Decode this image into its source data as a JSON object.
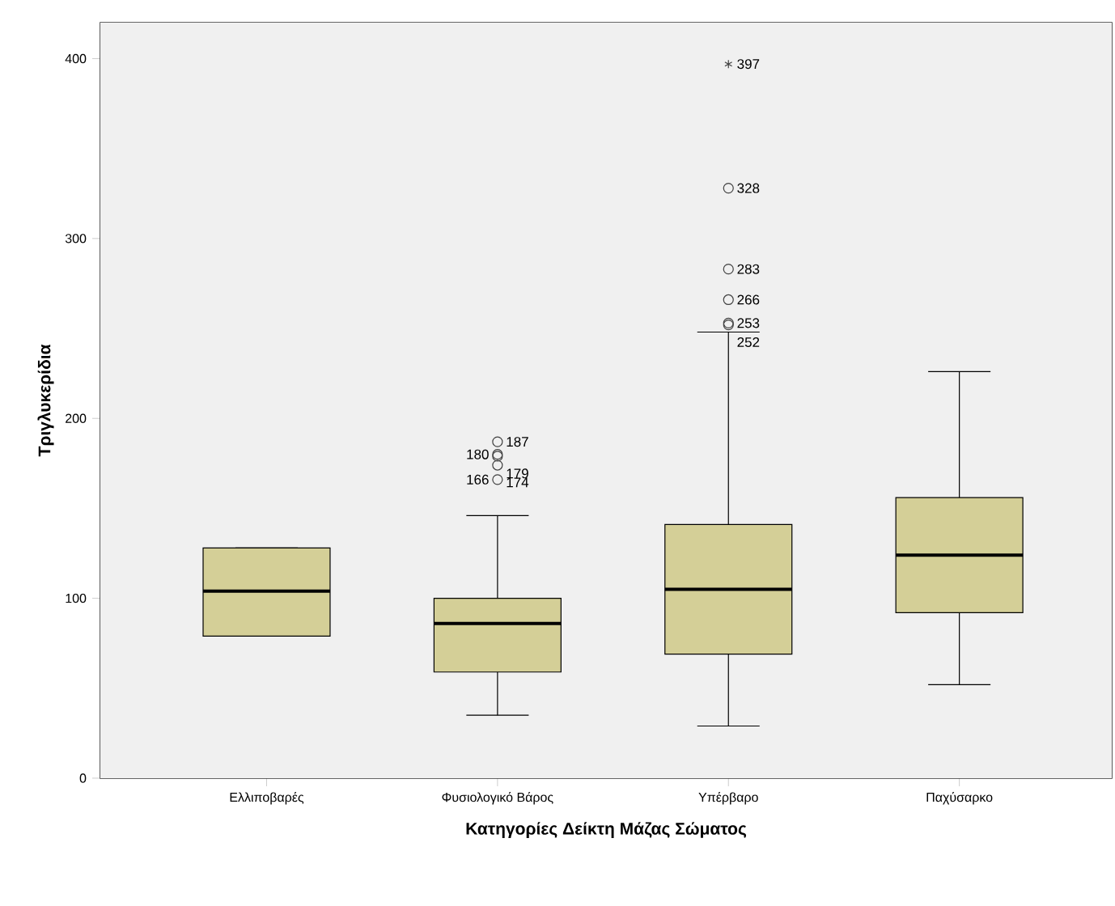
{
  "chart_data": {
    "type": "box",
    "xlabel": "Κατηγορίες Δείκτη Μάζας Σώματος",
    "ylabel": "Τριγλυκερίδια",
    "categories": [
      "Ελλιποβαρές",
      "Φυσιολογικό Βάρος",
      "Υπέρβαρο",
      "Παχύσαρκο"
    ],
    "color": "#d4cf97",
    "boxes": [
      {
        "low": 79,
        "q1": 79,
        "median": 104,
        "q3": 128,
        "high": 128
      },
      {
        "low": 35,
        "q1": 59,
        "median": 86,
        "q3": 100,
        "high": 146,
        "outliers": [
          187,
          180,
          179,
          174,
          166
        ]
      },
      {
        "low": 29,
        "q1": 69,
        "median": 105,
        "q3": 141,
        "high": 248,
        "outliers": [
          397,
          328,
          283,
          266,
          253,
          252
        ]
      },
      {
        "low": 52,
        "q1": 92,
        "median": 124,
        "q3": 156,
        "high": 226
      }
    ],
    "ylim": [
      0,
      420
    ],
    "yticks": [
      0,
      100,
      200,
      300,
      400
    ],
    "annotations": [
      "187",
      "180",
      "179",
      "174",
      "166",
      "397",
      "328",
      "283",
      "266",
      "253",
      "252"
    ],
    "grid": false
  }
}
